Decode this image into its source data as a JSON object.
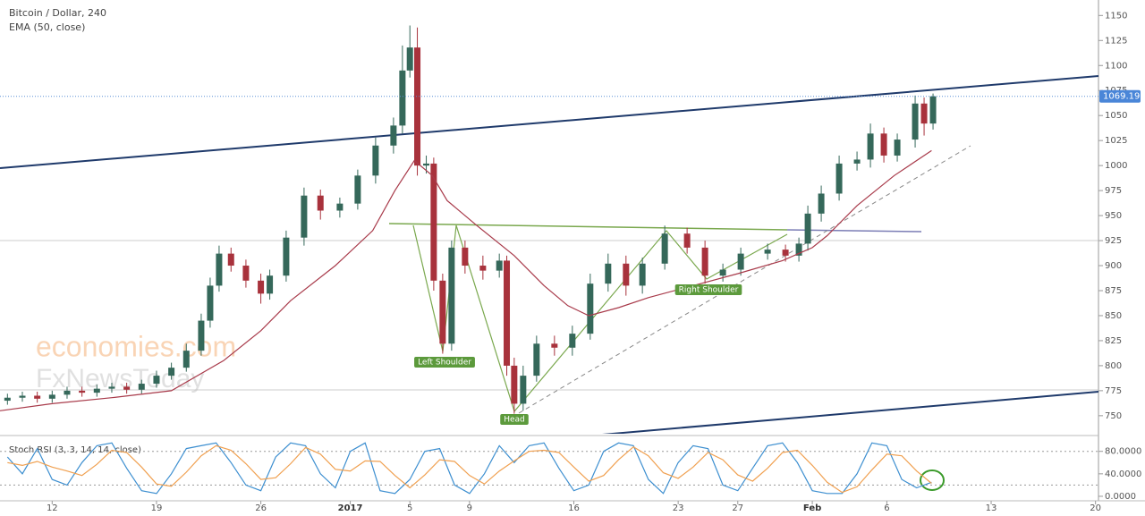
{
  "chart_data": [
    {
      "type": "candlestick",
      "title": "Bitcoin / Dollar, 240",
      "x": [
        -3,
        -2,
        -1,
        0,
        1,
        2,
        3,
        4,
        5,
        6,
        7,
        8,
        9,
        10,
        10.6,
        11.2,
        12,
        13,
        14,
        14.6,
        15.7,
        16.9,
        18,
        19.3,
        20.5,
        21.7,
        22.9,
        23.5,
        24,
        24.5,
        25.1,
        25.6,
        26.2,
        26.8,
        27.7,
        28.9,
        30,
        30.5,
        31,
        31.6,
        32.5,
        33.7,
        34.9,
        36.1,
        37.3,
        38.5,
        39.6,
        41.1,
        42.6,
        43.8,
        45,
        46.2,
        48,
        49.2,
        50.1,
        50.7,
        51.6,
        52.8,
        54,
        54.9,
        55.8,
        56.7,
        57.9,
        58.5,
        59.1
      ],
      "open": [
        765,
        768,
        770,
        767,
        771,
        775,
        773,
        777,
        779,
        776,
        782,
        790,
        798,
        815,
        845,
        880,
        912,
        900,
        885,
        872,
        890,
        928,
        970,
        955,
        962,
        990,
        1020,
        1040,
        1095,
        1118,
        1000,
        1002,
        885,
        822,
        918,
        900,
        895,
        905,
        800,
        762,
        790,
        822,
        818,
        832,
        882,
        902,
        880,
        902,
        932,
        918,
        890,
        896,
        912,
        916,
        910,
        922,
        952,
        972,
        1002,
        1006,
        1032,
        1010,
        1026,
        1062,
        1042
      ],
      "high": [
        772,
        774,
        774,
        775,
        779,
        779,
        781,
        783,
        783,
        786,
        795,
        803,
        822,
        852,
        888,
        920,
        918,
        906,
        892,
        896,
        935,
        978,
        976,
        968,
        996,
        1028,
        1048,
        1120,
        1140,
        1138,
        1010,
        1008,
        892,
        925,
        925,
        910,
        912,
        910,
        808,
        800,
        830,
        830,
        840,
        892,
        912,
        910,
        908,
        940,
        938,
        925,
        902,
        918,
        922,
        921,
        928,
        960,
        980,
        1010,
        1014,
        1042,
        1038,
        1032,
        1070,
        1068,
        1072
      ],
      "low": [
        761,
        764,
        763,
        763,
        767,
        769,
        769,
        773,
        772,
        772,
        778,
        786,
        794,
        810,
        838,
        874,
        894,
        878,
        862,
        866,
        884,
        920,
        946,
        948,
        956,
        982,
        1012,
        1032,
        1088,
        990,
        992,
        875,
        812,
        815,
        892,
        886,
        888,
        790,
        752,
        755,
        784,
        810,
        810,
        826,
        874,
        870,
        872,
        896,
        912,
        882,
        884,
        890,
        906,
        904,
        904,
        915,
        944,
        965,
        995,
        998,
        1003,
        1004,
        1018,
        1030,
        1036
      ],
      "close": [
        768,
        770,
        767,
        771,
        775,
        773,
        777,
        779,
        776,
        782,
        790,
        798,
        815,
        845,
        880,
        912,
        900,
        885,
        872,
        890,
        928,
        970,
        955,
        962,
        990,
        1020,
        1040,
        1095,
        1118,
        1000,
        1002,
        885,
        822,
        918,
        900,
        895,
        905,
        800,
        762,
        790,
        822,
        818,
        832,
        882,
        902,
        880,
        902,
        932,
        918,
        890,
        896,
        912,
        916,
        910,
        922,
        952,
        972,
        1002,
        1006,
        1032,
        1010,
        1026,
        1062,
        1042,
        1069.19
      ],
      "up_color": "#35685a",
      "down_color": "#a8323c",
      "series": [
        {
          "name": "EMA (50, close)",
          "color": "#a83a4a",
          "x": [
            -3.5,
            0,
            4,
            8,
            11.5,
            14,
            16,
            19,
            21.5,
            23,
            24.3,
            25.5,
            26.5,
            28.5,
            31,
            33,
            34.6,
            36,
            38,
            40,
            43,
            46,
            49,
            51,
            52,
            54,
            56.5,
            59
          ],
          "values": [
            755,
            762,
            768,
            775,
            805,
            835,
            865,
            900,
            935,
            975,
            1005,
            990,
            965,
            940,
            910,
            880,
            860,
            850,
            858,
            868,
            880,
            892,
            905,
            918,
            930,
            960,
            990,
            1015
          ]
        }
      ],
      "xlim": [
        -3.5,
        70.2
      ],
      "xticks": [
        {
          "value": 0,
          "label": "12"
        },
        {
          "value": 7,
          "label": "19"
        },
        {
          "value": 14,
          "label": "26"
        },
        {
          "value": 20,
          "label": "2017"
        },
        {
          "value": 24,
          "label": "5"
        },
        {
          "value": 28,
          "label": "9"
        },
        {
          "value": 35,
          "label": "16"
        },
        {
          "value": 42,
          "label": "23"
        },
        {
          "value": 46,
          "label": "27"
        },
        {
          "value": 51,
          "label": "Feb"
        },
        {
          "value": 56,
          "label": "6"
        },
        {
          "value": 63,
          "label": "13"
        },
        {
          "value": 70,
          "label": "20"
        }
      ],
      "ylim": [
        732,
        1161
      ],
      "yticks": [
        750,
        775,
        800,
        825,
        850,
        875,
        900,
        925,
        950,
        975,
        1000,
        1025,
        1050,
        1075,
        1100,
        1125,
        1150
      ],
      "annotations": [
        "Left Shoulder",
        "Head",
        "Right Shoulder"
      ],
      "watermarks": [
        "economies.com",
        "FxNewsToday"
      ]
    },
    {
      "type": "line",
      "title": "Stoch RSI (3, 3, 14, 14, close)",
      "x": [
        -3,
        -2,
        -1,
        0,
        1,
        2,
        3,
        4,
        5,
        6,
        7,
        8,
        9,
        10,
        11,
        12,
        13,
        14,
        15,
        16,
        17,
        18,
        19,
        20,
        21,
        22,
        23,
        24,
        25,
        26,
        27,
        28,
        29,
        30,
        31,
        32,
        33,
        34,
        35,
        36,
        37,
        38,
        39,
        40,
        41,
        42,
        43,
        44,
        45,
        46,
        47,
        48,
        49,
        50,
        51,
        52,
        53,
        54,
        55,
        56,
        57,
        58,
        59
      ],
      "series": [
        {
          "color": "#3d8fd0",
          "values": [
            70,
            40,
            85,
            30,
            20,
            60,
            90,
            95,
            50,
            10,
            5,
            40,
            85,
            90,
            95,
            60,
            20,
            10,
            70,
            95,
            90,
            40,
            15,
            80,
            95,
            10,
            5,
            30,
            80,
            85,
            20,
            5,
            40,
            90,
            60,
            90,
            95,
            50,
            10,
            20,
            80,
            95,
            90,
            30,
            5,
            60,
            90,
            85,
            20,
            10,
            50,
            90,
            95,
            60,
            10,
            5,
            5,
            40,
            95,
            90,
            30,
            15,
            25
          ]
        },
        {
          "color": "#f0a050",
          "values": [
            60,
            55,
            62,
            52,
            45,
            37,
            57,
            82,
            78,
            52,
            22,
            18,
            43,
            72,
            90,
            82,
            58,
            30,
            33,
            58,
            87,
            75,
            48,
            45,
            63,
            62,
            37,
            15,
            38,
            65,
            62,
            37,
            22,
            45,
            63,
            80,
            82,
            78,
            52,
            27,
            37,
            65,
            88,
            72,
            42,
            32,
            52,
            78,
            65,
            38,
            27,
            50,
            78,
            82,
            55,
            25,
            7,
            17,
            47,
            75,
            72,
            45,
            23
          ]
        }
      ],
      "xlim": [
        -3.5,
        70.2
      ],
      "ylim": [
        -8,
        105
      ],
      "yticks": [
        {
          "value": 80,
          "label": "80.0000"
        },
        {
          "value": 40,
          "label": "40.0000"
        },
        {
          "value": 0,
          "label": "0.0000"
        }
      ],
      "bands": [
        20,
        80
      ]
    }
  ]
}
